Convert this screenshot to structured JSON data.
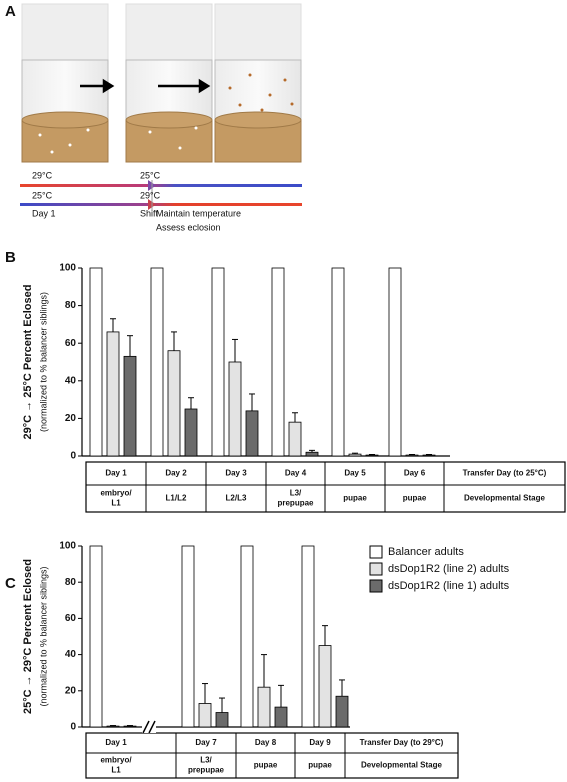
{
  "diagram": {
    "label": "A",
    "top_temps": [
      "29°C",
      "25°C"
    ],
    "bottom_temps": [
      "25°C",
      "29°C"
    ],
    "steps": [
      "Day 1",
      "Shift"
    ],
    "notes": [
      "Maintain temperature",
      "Assess eclosion"
    ]
  },
  "chart_data": [
    {
      "type": "bar",
      "panel": "B",
      "title": "29°C → 25°C Percent Eclosed",
      "subtitle": "(normalized to % balancer siblings)",
      "categories": [
        "Day 1",
        "Day 2",
        "Day 3",
        "Day 4",
        "Day 5",
        "Day 6"
      ],
      "stages": [
        "embryo/\nL1",
        "L1/L2",
        "L2/L3",
        "L3/\nprepupae",
        "pupae",
        "pupae"
      ],
      "row_labels": [
        "Transfer Day (to 25°C)",
        "Developmental Stage"
      ],
      "series": [
        {
          "name": "Balancer adults",
          "color": "#ffffff",
          "values": [
            100,
            100,
            100,
            100,
            100,
            100
          ]
        },
        {
          "name": "dsDop1R2 (line 2) adults",
          "color": "#e3e3e3",
          "values": [
            66,
            56,
            50,
            18,
            1,
            0.5
          ],
          "errors": [
            7,
            10,
            12,
            5,
            0.5,
            0.3
          ]
        },
        {
          "name": "dsDop1R2 (line 1) adults",
          "color": "#6b6b6b",
          "values": [
            53,
            25,
            24,
            2,
            0.5,
            0.5
          ],
          "errors": [
            11,
            6,
            9,
            1,
            0.3,
            0.3
          ]
        }
      ],
      "ylim": [
        0,
        100
      ],
      "yticks": [
        0,
        20,
        40,
        60,
        80,
        100
      ]
    },
    {
      "type": "bar",
      "panel": "C",
      "title": "25°C → 29°C Percent Eclosed",
      "subtitle": "(normalized to % balancer siblings)",
      "categories": [
        "Day 1",
        "Day 7",
        "Day 8",
        "Day 9"
      ],
      "stages": [
        "embryo/\nL1",
        "L3/\nprepupae",
        "pupae",
        "pupae"
      ],
      "row_labels": [
        "Transfer Day (to 29°C)",
        "Developmental Stage"
      ],
      "series": [
        {
          "name": "Balancer adults",
          "color": "#ffffff",
          "values": [
            100,
            100,
            100,
            100
          ]
        },
        {
          "name": "dsDop1R2 (line 2) adults",
          "color": "#e3e3e3",
          "values": [
            0.5,
            13,
            22,
            45
          ],
          "errors": [
            0.3,
            11,
            18,
            11
          ]
        },
        {
          "name": "dsDop1R2 (line 1) adults",
          "color": "#6b6b6b",
          "values": [
            0.5,
            8,
            11,
            17
          ],
          "errors": [
            0.3,
            8,
            12,
            9
          ]
        }
      ],
      "ylim": [
        0,
        100
      ],
      "yticks": [
        0,
        20,
        40,
        60,
        80,
        100
      ],
      "legend": "top-right"
    }
  ]
}
